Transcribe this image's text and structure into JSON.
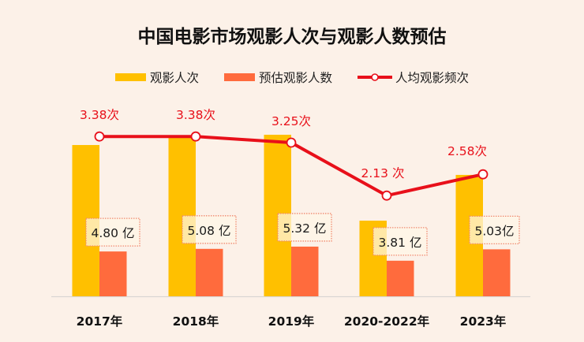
{
  "chart_data": {
    "type": "bar",
    "title": "中国电影市场观影人次与观影人数预估",
    "xlabel": "",
    "ylabel": "",
    "grid": false,
    "legend_position": "top-center",
    "categories": [
      "2017年",
      "2018年",
      "2019年",
      "2020-2022年",
      "2023年"
    ],
    "series": [
      {
        "name": "观影人次",
        "kind": "bar",
        "unit": "亿",
        "color": "#FFC000",
        "values": [
          16.2,
          17.2,
          17.3,
          8.1,
          13.0
        ]
      },
      {
        "name": "预估观影人数",
        "kind": "bar",
        "unit": "亿",
        "color": "#FF6B3D",
        "values": [
          4.8,
          5.08,
          5.32,
          3.81,
          5.03
        ],
        "labels": [
          "4.80 亿",
          "5.08 亿",
          "5.32 亿",
          "3.81 亿",
          "5.03亿"
        ]
      },
      {
        "name": "人均观影频次",
        "kind": "line",
        "unit": "次",
        "color": "#E8101A",
        "values": [
          3.38,
          3.38,
          3.25,
          2.13,
          2.58
        ],
        "labels": [
          "3.38次",
          "3.38次",
          "3.25次",
          "2.13 次",
          "2.58次"
        ]
      }
    ],
    "bar_ylim": [
      0,
      20
    ],
    "line_ylim": [
      0,
      5
    ]
  },
  "colors": {
    "background": "#FCF1E8",
    "axis": "#D9D6D3",
    "label_box_border": "#F08A70",
    "label_box_fill": "#FFF6E6"
  }
}
